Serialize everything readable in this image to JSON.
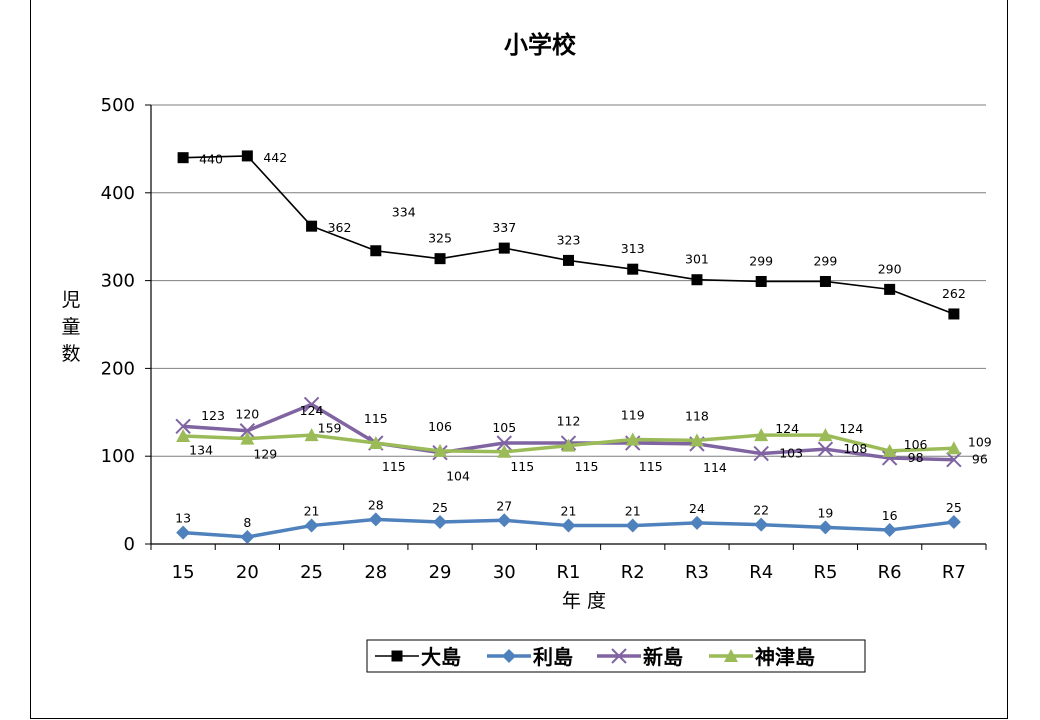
{
  "chart_data": {
    "type": "line",
    "title": "小学校",
    "ylabel": "児童数",
    "xlabel": "年 度",
    "categories": [
      "15",
      "20",
      "25",
      "28",
      "29",
      "30",
      "R1",
      "R2",
      "R3",
      "R4",
      "R5",
      "R6",
      "R7"
    ],
    "ylim": [
      0,
      500
    ],
    "yticks": [
      0,
      100,
      200,
      300,
      400,
      500
    ],
    "grid": true,
    "legend_position": "bottom",
    "series": [
      {
        "name": "大島",
        "color": "#000000",
        "marker": "square",
        "values": [
          440,
          442,
          362,
          334,
          325,
          337,
          323,
          313,
          301,
          299,
          299,
          290,
          262
        ]
      },
      {
        "name": "利島",
        "color": "#4f81bd",
        "marker": "diamond",
        "values": [
          13,
          8,
          21,
          28,
          25,
          27,
          21,
          21,
          24,
          22,
          19,
          16,
          25
        ]
      },
      {
        "name": "新島",
        "color": "#8064a2",
        "marker": "x",
        "values": [
          134,
          129,
          159,
          115,
          104,
          115,
          115,
          115,
          114,
          103,
          108,
          98,
          96
        ]
      },
      {
        "name": "神津島",
        "color": "#9bbb59",
        "marker": "triangle",
        "values": [
          123,
          120,
          124,
          115,
          106,
          105,
          112,
          119,
          118,
          124,
          124,
          106,
          109
        ]
      }
    ]
  }
}
